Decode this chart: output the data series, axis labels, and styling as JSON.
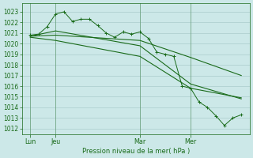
{
  "background_color": "#cce8e8",
  "grid_color": "#aacccc",
  "line_color": "#1a6b1a",
  "ylim": [
    1011.5,
    1023.8
  ],
  "yticks": [
    1012,
    1013,
    1014,
    1015,
    1016,
    1017,
    1018,
    1019,
    1020,
    1021,
    1022,
    1023
  ],
  "xlabel": "Pression niveau de la mer( hPa )",
  "xtick_labels": [
    "Lun",
    "Jeu",
    "Mar",
    "Mer"
  ],
  "xtick_positions": [
    1,
    4,
    14,
    20
  ],
  "xlim": [
    0,
    27
  ],
  "series1_x": [
    1,
    2,
    3,
    4,
    5,
    6,
    7,
    8,
    9,
    10,
    11,
    12,
    13,
    14,
    15,
    16,
    17,
    18,
    19,
    20,
    21,
    22,
    23,
    24,
    25,
    26
  ],
  "series1_y": [
    1020.8,
    1020.9,
    1021.6,
    1022.8,
    1023.0,
    1022.1,
    1022.3,
    1022.3,
    1021.7,
    1021.0,
    1020.6,
    1021.1,
    1020.9,
    1021.1,
    1020.5,
    1019.2,
    1019.0,
    1018.8,
    1016.0,
    1015.8,
    1014.5,
    1014.0,
    1013.2,
    1012.3,
    1013.0,
    1013.3
  ],
  "series2_x": [
    1,
    4,
    14,
    20,
    26
  ],
  "series2_y": [
    1020.7,
    1021.2,
    1019.8,
    1016.2,
    1014.8
  ],
  "series3_x": [
    1,
    4,
    14,
    20,
    26
  ],
  "series3_y": [
    1020.6,
    1020.3,
    1018.8,
    1015.8,
    1014.9
  ],
  "series4_x": [
    1,
    4,
    14,
    20,
    26
  ],
  "series4_y": [
    1020.7,
    1020.8,
    1020.3,
    1018.7,
    1017.0
  ],
  "ylabel_fontsize": 6.0,
  "ytick_fontsize": 5.5,
  "xtick_fontsize": 5.8
}
